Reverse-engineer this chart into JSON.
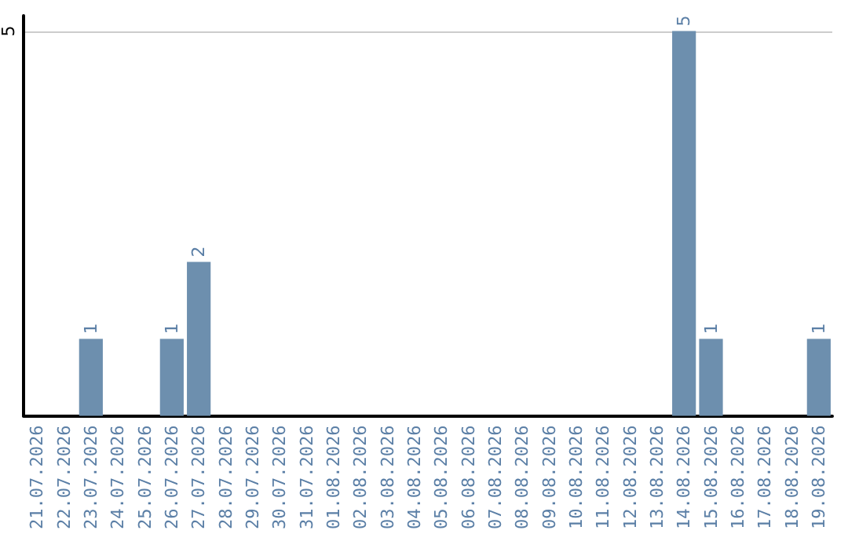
{
  "chart_data": {
    "type": "bar",
    "categories": [
      "21.07.2026",
      "22.07.2026",
      "23.07.2026",
      "24.07.2026",
      "25.07.2026",
      "26.07.2026",
      "27.07.2026",
      "28.07.2026",
      "29.07.2026",
      "30.07.2026",
      "31.07.2026",
      "01.08.2026",
      "02.08.2026",
      "03.08.2026",
      "04.08.2026",
      "05.08.2026",
      "06.08.2026",
      "07.08.2026",
      "08.08.2026",
      "09.08.2026",
      "10.08.2026",
      "11.08.2026",
      "12.08.2026",
      "13.08.2026",
      "14.08.2026",
      "15.08.2026",
      "16.08.2026",
      "17.08.2026",
      "18.08.2026",
      "19.08.2026"
    ],
    "values": [
      0,
      0,
      1,
      0,
      0,
      1,
      2,
      0,
      0,
      0,
      0,
      0,
      0,
      0,
      0,
      0,
      0,
      0,
      0,
      0,
      0,
      0,
      0,
      0,
      5,
      1,
      0,
      0,
      0,
      1
    ],
    "value_labels": [
      null,
      null,
      "1",
      null,
      null,
      "1",
      "2",
      null,
      null,
      null,
      null,
      null,
      null,
      null,
      null,
      null,
      null,
      null,
      null,
      null,
      null,
      null,
      null,
      null,
      "5",
      "1",
      null,
      null,
      null,
      "1"
    ],
    "color": "#6d8fae",
    "ylim": [
      0,
      5.2
    ],
    "yticks": [
      {
        "value": 0,
        "label": null
      },
      5
    ],
    "grid": "y"
  }
}
